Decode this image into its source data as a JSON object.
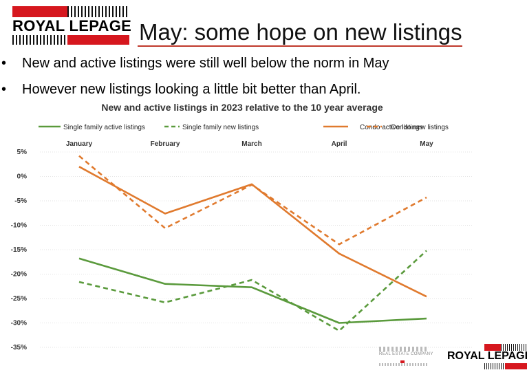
{
  "header": {
    "logo_text": "ROYAL LEPAGE",
    "title": "May: some hope on new listings"
  },
  "bullets": [
    "New and active listings were still well below the norm in May",
    "However new listings looking a little bit better than April."
  ],
  "bullet_glyph": "•",
  "footer": {
    "agency_text": "REAL ESTATE COMPANY",
    "logo_text": "ROYAL LEPAGE"
  },
  "colors": {
    "single_family": "#5a9a3c",
    "condo": "#e07a2e",
    "brand_red": "#d6171e",
    "title_rule": "#c0392b"
  },
  "chart_data": {
    "type": "line",
    "title": "New and active listings in 2023 relative to the 10 year average",
    "categories": [
      "January",
      "February",
      "March",
      "April",
      "May"
    ],
    "ylim": [
      -35,
      5
    ],
    "yticks": [
      "5%",
      "0%",
      "-5%",
      "-10%",
      "-15%",
      "-20%",
      "-25%",
      "-30%",
      "-35%"
    ],
    "ytick_values": [
      5,
      0,
      -5,
      -10,
      -15,
      -20,
      -25,
      -30,
      -35
    ],
    "x_axis_position": "top",
    "legend_position": "top",
    "grid": true,
    "series": [
      {
        "name": "Single family active listings",
        "color": "#5a9a3c",
        "dashed": false,
        "values": [
          -16.8,
          -22.0,
          -22.7,
          -30.0,
          -29.1
        ]
      },
      {
        "name": "Single family new listings",
        "color": "#5a9a3c",
        "dashed": true,
        "values": [
          -21.6,
          -25.8,
          -21.2,
          -31.6,
          -15.2
        ]
      },
      {
        "name": "Condo active listings",
        "color": "#e07a2e",
        "dashed": false,
        "values": [
          2.0,
          -7.6,
          -1.6,
          -15.8,
          -24.6
        ]
      },
      {
        "name": "Condo new listings",
        "color": "#e07a2e",
        "dashed": true,
        "values": [
          4.2,
          -10.6,
          -1.7,
          -13.9,
          -4.3
        ]
      }
    ]
  }
}
